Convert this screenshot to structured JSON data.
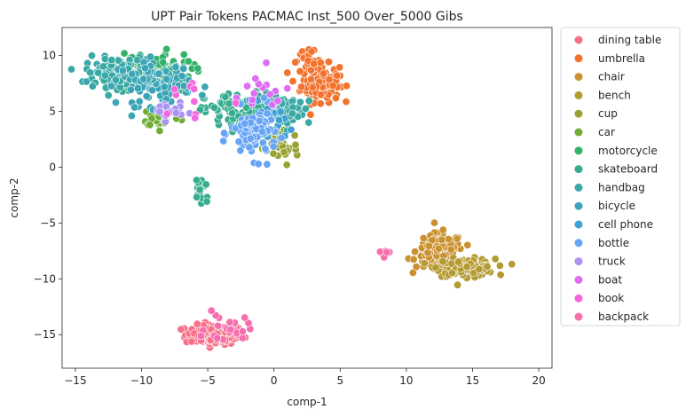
{
  "chart_data": {
    "type": "scatter",
    "title": "UPT Pair Tokens PACMAC Inst_500 Over_5000 Gibs",
    "xlabel": "comp-1",
    "ylabel": "comp-2",
    "xlim": [
      -16,
      21
    ],
    "ylim": [
      -18,
      12.5
    ],
    "xticks": [
      -15,
      -10,
      -5,
      0,
      5,
      10,
      15,
      20
    ],
    "yticks": [
      10,
      5,
      0,
      -5,
      -10,
      -15
    ],
    "grid": false,
    "legend_position": "outside-right",
    "series": [
      {
        "name": "dining table",
        "color": "#f77189",
        "clusters": [
          [
            -4.5,
            -15,
            2.0,
            0.8,
            150
          ],
          [
            8.6,
            -7.7,
            0.5,
            0.3,
            5
          ]
        ]
      },
      {
        "name": "umbrella",
        "color": "#f3722d",
        "clusters": [
          [
            3.5,
            7.5,
            1.3,
            1.5,
            130
          ],
          [
            2.5,
            9.5,
            1.0,
            0.8,
            30
          ]
        ]
      },
      {
        "name": "chair",
        "color": "#ca9131",
        "clusters": [
          [
            12.5,
            -7.5,
            1.6,
            1.4,
            140
          ]
        ]
      },
      {
        "name": "bench",
        "color": "#b39a32",
        "clusters": [
          [
            14.5,
            -9.0,
            2.0,
            0.7,
            140
          ]
        ]
      },
      {
        "name": "cup",
        "color": "#99a233",
        "clusters": [
          [
            0.5,
            2.0,
            1.2,
            1.8,
            40
          ]
        ]
      },
      {
        "name": "car",
        "color": "#6fac33",
        "clusters": [
          [
            -8.5,
            4.5,
            1.3,
            0.8,
            40
          ]
        ]
      },
      {
        "name": "motorcycle",
        "color": "#33b26a",
        "clusters": [
          [
            -9,
            8.5,
            2.5,
            1.6,
            120
          ]
        ]
      },
      {
        "name": "skateboard",
        "color": "#36ad8f",
        "clusters": [
          [
            -2.5,
            5.0,
            2.5,
            1.5,
            100
          ],
          [
            -5.5,
            -2.0,
            0.6,
            1.4,
            20
          ]
        ]
      },
      {
        "name": "handbag",
        "color": "#38a9a4",
        "clusters": [
          [
            -12,
            8.5,
            2.0,
            1.2,
            110
          ],
          [
            1.5,
            5.0,
            1.8,
            1.2,
            50
          ]
        ]
      },
      {
        "name": "bicycle",
        "color": "#3aa5b6",
        "clusters": [
          [
            -9,
            7.5,
            2.5,
            1.8,
            100
          ]
        ]
      },
      {
        "name": "cell phone",
        "color": "#3da1d2",
        "clusters": [
          [
            -0.5,
            4.0,
            1.2,
            1.6,
            40
          ]
        ]
      },
      {
        "name": "bottle",
        "color": "#67a4f4",
        "clusters": [
          [
            -1.5,
            3.0,
            1.6,
            2.0,
            90
          ]
        ]
      },
      {
        "name": "truck",
        "color": "#ab93f4",
        "clusters": [
          [
            -8,
            5.0,
            1.0,
            0.8,
            25
          ]
        ]
      },
      {
        "name": "boat",
        "color": "#dd6ef4",
        "clusters": [
          [
            -1,
            6.5,
            2.5,
            2.0,
            15
          ]
        ]
      },
      {
        "name": "book",
        "color": "#f467dd",
        "clusters": [
          [
            -6,
            6.0,
            2.5,
            2.5,
            10
          ]
        ]
      },
      {
        "name": "backpack",
        "color": "#f66ead",
        "clusters": [
          [
            -3.5,
            -14.5,
            1.5,
            1.2,
            25
          ],
          [
            8.3,
            -7.7,
            0.4,
            0.3,
            4
          ]
        ]
      }
    ]
  }
}
